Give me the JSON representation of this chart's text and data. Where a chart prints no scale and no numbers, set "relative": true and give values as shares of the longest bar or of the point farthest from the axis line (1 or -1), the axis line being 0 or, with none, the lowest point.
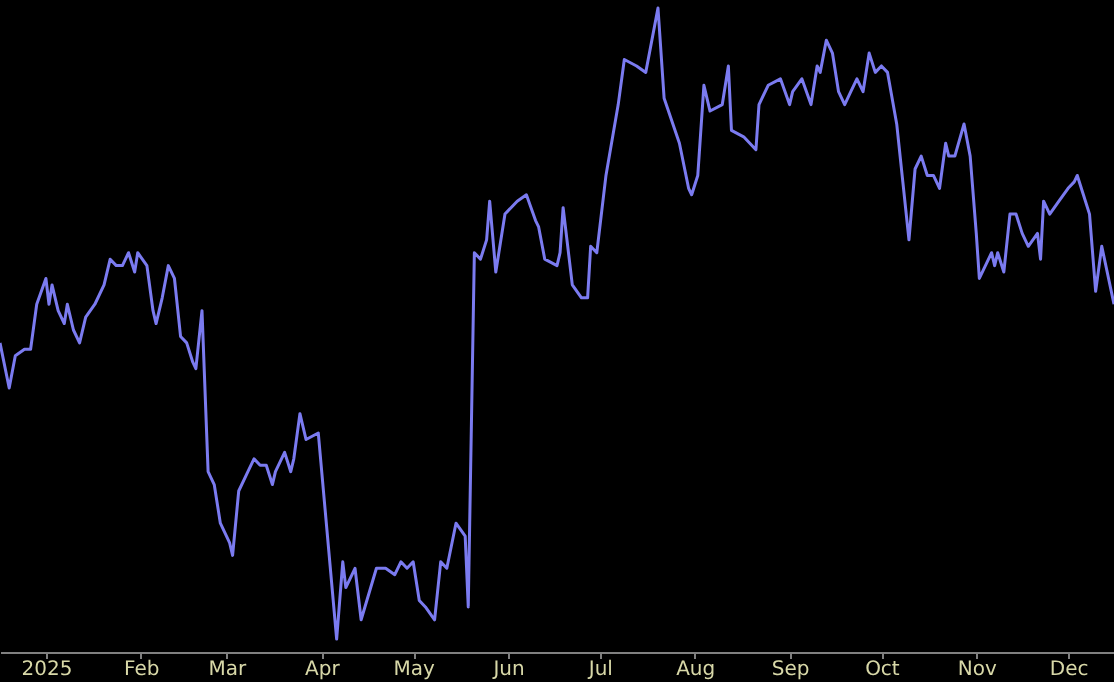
{
  "chart_data": {
    "type": "line",
    "relative": true,
    "color": "#7b7bf0",
    "line_style": "solid",
    "marker": "none",
    "grid": false,
    "tick_labels": "x",
    "xlim": [
      "2024-12-17",
      "2025-12-16"
    ],
    "xticks": [
      {
        "value": "2025-01-01",
        "label": "2025"
      },
      {
        "value": "2025-02-01",
        "label": "Feb"
      },
      {
        "value": "2025-03-01",
        "label": "Mar"
      },
      {
        "value": "2025-04-01",
        "label": "Apr"
      },
      {
        "value": "2025-05-01",
        "label": "May"
      },
      {
        "value": "2025-06-01",
        "label": "Jun"
      },
      {
        "value": "2025-07-01",
        "label": "Jul"
      },
      {
        "value": "2025-08-01",
        "label": "Aug"
      },
      {
        "value": "2025-09-01",
        "label": "Sep"
      },
      {
        "value": "2025-10-01",
        "label": "Oct"
      },
      {
        "value": "2025-11-01",
        "label": "Nov"
      },
      {
        "value": "2025-12-01",
        "label": "Dec"
      }
    ],
    "x": [
      "2024-12-17",
      "2024-12-20",
      "2024-12-22",
      "2024-12-25",
      "2024-12-27",
      "2024-12-29",
      "2025-01-01",
      "2025-01-02",
      "2025-01-03",
      "2025-01-05",
      "2025-01-07",
      "2025-01-08",
      "2025-01-10",
      "2025-01-12",
      "2025-01-14",
      "2025-01-17",
      "2025-01-20",
      "2025-01-22",
      "2025-01-24",
      "2025-01-26",
      "2025-01-28",
      "2025-01-30",
      "2025-01-31",
      "2025-02-03",
      "2025-02-05",
      "2025-02-06",
      "2025-02-08",
      "2025-02-10",
      "2025-02-12",
      "2025-02-14",
      "2025-02-16",
      "2025-02-18",
      "2025-02-19",
      "2025-02-21",
      "2025-02-23",
      "2025-02-25",
      "2025-02-27",
      "2025-03-02",
      "2025-03-03",
      "2025-03-05",
      "2025-03-08",
      "2025-03-10",
      "2025-03-12",
      "2025-03-14",
      "2025-03-16",
      "2025-03-17",
      "2025-03-20",
      "2025-03-22",
      "2025-03-23",
      "2025-03-25",
      "2025-03-27",
      "2025-03-31",
      "2025-04-06",
      "2025-04-08",
      "2025-04-09",
      "2025-04-12",
      "2025-04-14",
      "2025-04-19",
      "2025-04-22",
      "2025-04-25",
      "2025-04-27",
      "2025-04-29",
      "2025-05-01",
      "2025-05-03",
      "2025-05-05",
      "2025-05-08",
      "2025-05-10",
      "2025-05-12",
      "2025-05-15",
      "2025-05-18",
      "2025-05-19",
      "2025-05-21",
      "2025-05-23",
      "2025-05-25",
      "2025-05-26",
      "2025-05-28",
      "2025-05-31",
      "2025-06-04",
      "2025-06-07",
      "2025-06-10",
      "2025-06-11",
      "2025-06-13",
      "2025-06-17",
      "2025-06-18",
      "2025-06-19",
      "2025-06-22",
      "2025-06-25",
      "2025-06-27",
      "2025-06-28",
      "2025-06-30",
      "2025-07-03",
      "2025-07-07",
      "2025-07-09",
      "2025-07-13",
      "2025-07-16",
      "2025-07-20",
      "2025-07-22",
      "2025-07-27",
      "2025-07-30",
      "2025-07-31",
      "2025-08-02",
      "2025-08-04",
      "2025-08-06",
      "2025-08-10",
      "2025-08-12",
      "2025-08-13",
      "2025-08-17",
      "2025-08-21",
      "2025-08-22",
      "2025-08-25",
      "2025-08-29",
      "2025-09-01",
      "2025-09-02",
      "2025-09-05",
      "2025-09-08",
      "2025-09-10",
      "2025-09-11",
      "2025-09-13",
      "2025-09-15",
      "2025-09-17",
      "2025-09-19",
      "2025-09-21",
      "2025-09-23",
      "2025-09-25",
      "2025-09-27",
      "2025-09-29",
      "2025-10-01",
      "2025-10-03",
      "2025-10-06",
      "2025-10-08",
      "2025-10-10",
      "2025-10-12",
      "2025-10-14",
      "2025-10-16",
      "2025-10-18",
      "2025-10-20",
      "2025-10-22",
      "2025-10-23",
      "2025-10-25",
      "2025-10-28",
      "2025-10-30",
      "2025-11-01",
      "2025-11-02",
      "2025-11-06",
      "2025-11-07",
      "2025-11-08",
      "2025-11-10",
      "2025-11-12",
      "2025-11-14",
      "2025-11-16",
      "2025-11-18",
      "2025-11-21",
      "2025-11-22",
      "2025-11-23",
      "2025-11-25",
      "2025-11-28",
      "2025-12-01",
      "2025-12-03",
      "2025-12-04",
      "2025-12-06",
      "2025-12-08",
      "2025-12-10",
      "2025-12-12",
      "2025-12-16"
    ],
    "values": [
      0.48,
      0.41,
      0.46,
      0.47,
      0.47,
      0.54,
      0.58,
      0.54,
      0.57,
      0.53,
      0.51,
      0.54,
      0.5,
      0.48,
      0.52,
      0.54,
      0.57,
      0.61,
      0.6,
      0.6,
      0.62,
      0.59,
      0.62,
      0.6,
      0.53,
      0.51,
      0.55,
      0.6,
      0.58,
      0.49,
      0.48,
      0.45,
      0.44,
      0.53,
      0.28,
      0.26,
      0.2,
      0.17,
      0.15,
      0.25,
      0.28,
      0.3,
      0.29,
      0.29,
      0.26,
      0.28,
      0.31,
      0.28,
      0.3,
      0.37,
      0.33,
      0.34,
      0.02,
      0.14,
      0.1,
      0.13,
      0.05,
      0.13,
      0.13,
      0.12,
      0.14,
      0.13,
      0.14,
      0.08,
      0.07,
      0.05,
      0.14,
      0.13,
      0.2,
      0.18,
      0.07,
      0.62,
      0.61,
      0.64,
      0.7,
      0.59,
      0.68,
      0.7,
      0.71,
      0.67,
      0.66,
      0.61,
      0.6,
      0.62,
      0.69,
      0.57,
      0.55,
      0.55,
      0.63,
      0.62,
      0.74,
      0.85,
      0.92,
      0.91,
      0.9,
      1,
      0.86,
      0.79,
      0.72,
      0.71,
      0.74,
      0.88,
      0.84,
      0.85,
      0.91,
      0.81,
      0.8,
      0.78,
      0.85,
      0.88,
      0.89,
      0.85,
      0.87,
      0.89,
      0.85,
      0.91,
      0.9,
      0.95,
      0.93,
      0.87,
      0.85,
      0.87,
      0.89,
      0.87,
      0.93,
      0.9,
      0.91,
      0.9,
      0.82,
      0.73,
      0.64,
      0.75,
      0.77,
      0.74,
      0.74,
      0.72,
      0.79,
      0.77,
      0.77,
      0.82,
      0.77,
      0.65,
      0.58,
      0.62,
      0.6,
      0.62,
      0.59,
      0.68,
      0.68,
      0.65,
      0.63,
      0.65,
      0.61,
      0.7,
      0.68,
      0.7,
      0.72,
      0.73,
      0.74,
      0.71,
      0.68,
      0.56,
      0.63,
      0.54
    ]
  }
}
